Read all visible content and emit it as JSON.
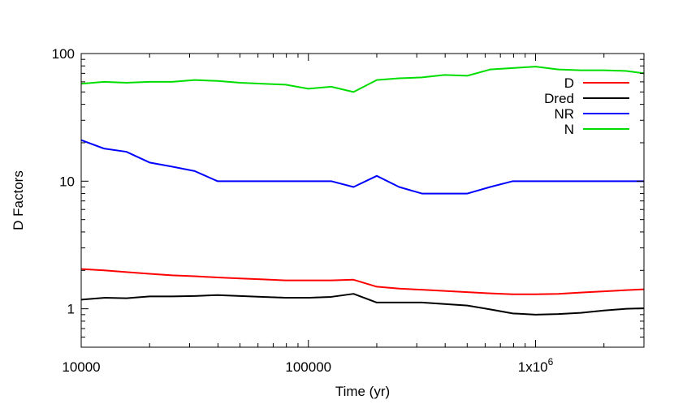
{
  "chart_data": {
    "type": "line",
    "xlabel": "Time (yr)",
    "ylabel": "D Factors",
    "xscale": "log",
    "yscale": "log",
    "xlim": [
      10000,
      3000000
    ],
    "ylim": [
      0.5,
      100
    ],
    "xticks": [
      {
        "value": 10000,
        "label": "10000"
      },
      {
        "value": 100000,
        "label": "100000"
      },
      {
        "value": 1000000,
        "label": "1x10",
        "sup": "6"
      }
    ],
    "yticks": [
      {
        "value": 1,
        "label": "1"
      },
      {
        "value": 10,
        "label": "10"
      },
      {
        "value": 100,
        "label": "100"
      }
    ],
    "legend_position": "top-right",
    "grid": false,
    "series": [
      {
        "name": "D",
        "color": "#ff0000",
        "x": [
          10000,
          12600,
          15800,
          20000,
          25100,
          31600,
          39800,
          50100,
          63100,
          79400,
          100000,
          126000,
          158000,
          200000,
          251000,
          316000,
          398000,
          501000,
          631000,
          794000,
          1000000,
          1260000,
          1580000,
          2000000,
          2510000,
          3000000
        ],
        "y": [
          2.05,
          2.0,
          1.94,
          1.88,
          1.83,
          1.8,
          1.76,
          1.73,
          1.7,
          1.67,
          1.67,
          1.67,
          1.69,
          1.49,
          1.44,
          1.41,
          1.38,
          1.35,
          1.32,
          1.3,
          1.3,
          1.31,
          1.34,
          1.37,
          1.4,
          1.42
        ]
      },
      {
        "name": "Dred",
        "color": "#000000",
        "x": [
          10000,
          12600,
          15800,
          20000,
          25100,
          31600,
          39800,
          50100,
          63100,
          79400,
          100000,
          126000,
          158000,
          200000,
          251000,
          316000,
          398000,
          501000,
          631000,
          794000,
          1000000,
          1260000,
          1580000,
          2000000,
          2510000,
          3000000
        ],
        "y": [
          1.18,
          1.22,
          1.21,
          1.25,
          1.25,
          1.26,
          1.28,
          1.26,
          1.24,
          1.22,
          1.22,
          1.24,
          1.31,
          1.12,
          1.12,
          1.12,
          1.09,
          1.06,
          0.99,
          0.92,
          0.9,
          0.91,
          0.93,
          0.97,
          1.0,
          1.01
        ]
      },
      {
        "name": "NR",
        "color": "#0000ff",
        "x": [
          10000,
          12600,
          15800,
          20000,
          25100,
          31600,
          39800,
          50100,
          63100,
          79400,
          100000,
          126000,
          158000,
          200000,
          251000,
          316000,
          398000,
          501000,
          631000,
          794000,
          1000000,
          1260000,
          1580000,
          2000000,
          2510000,
          3000000
        ],
        "y": [
          21,
          18,
          17,
          14,
          13,
          12,
          10,
          10,
          10,
          10,
          10,
          10,
          9,
          11,
          9,
          8,
          8,
          8,
          9,
          10,
          10,
          10,
          10,
          10,
          10,
          10
        ]
      },
      {
        "name": "N",
        "color": "#00dd00",
        "x": [
          10000,
          12600,
          15800,
          20000,
          25100,
          31600,
          39800,
          50100,
          63100,
          79400,
          100000,
          126000,
          158000,
          200000,
          251000,
          316000,
          398000,
          501000,
          631000,
          794000,
          1000000,
          1260000,
          1580000,
          2000000,
          2510000,
          3000000
        ],
        "y": [
          58,
          60,
          59,
          60,
          60,
          62,
          61,
          59,
          58,
          57,
          53,
          55,
          50,
          62,
          64,
          65,
          68,
          67,
          75,
          77,
          79,
          75,
          74,
          74,
          73,
          70
        ]
      }
    ]
  }
}
